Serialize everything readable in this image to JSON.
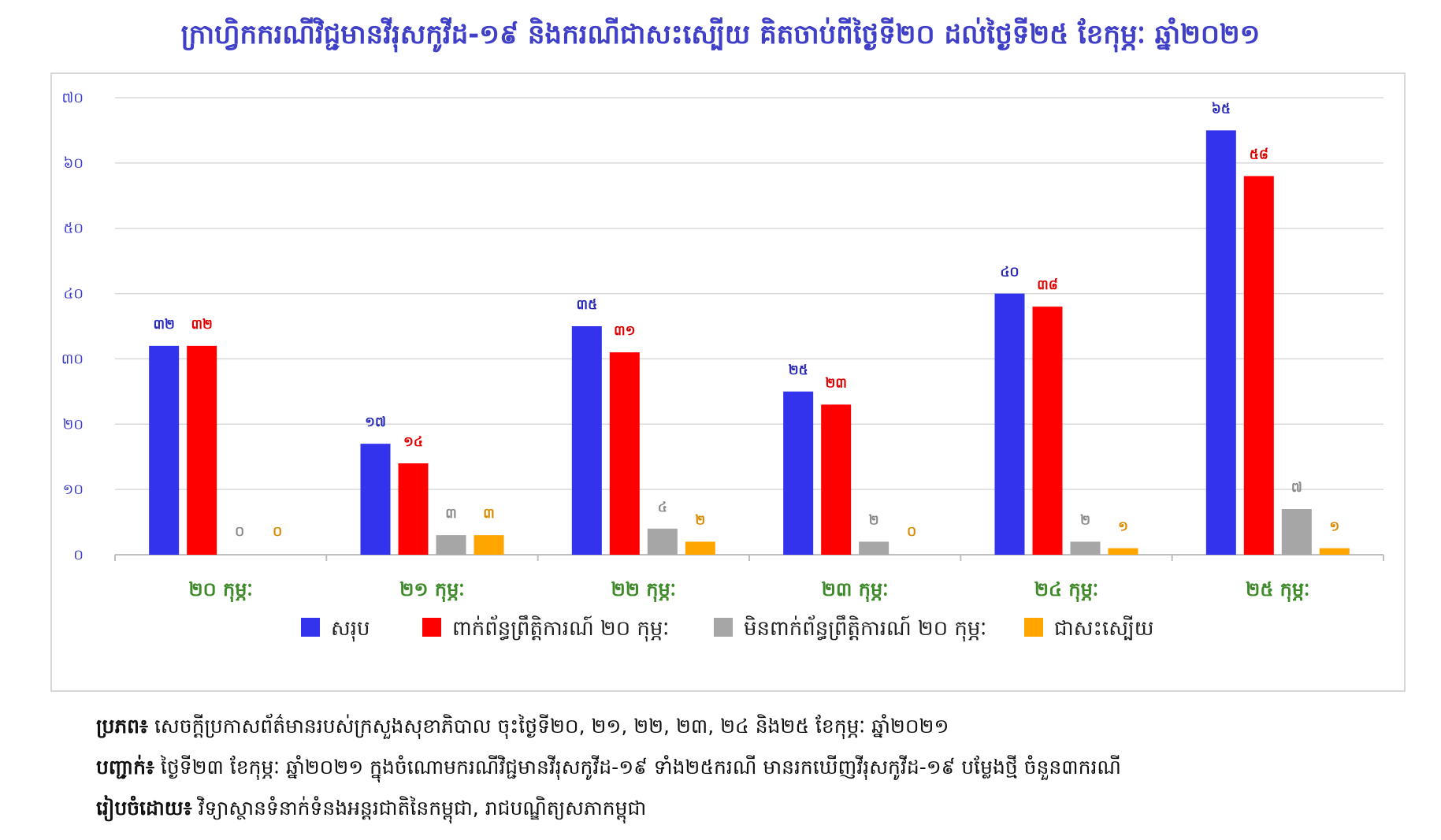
{
  "title": "ក្រាហ្វិកករណីវិជ្ជមានវីរុសកូវីដ-១៩ និងករណីជាសះស្បើយ គិតចាប់ពីថ្ងៃទី២០ ដល់ថ្ងៃទី២៥ ខែកុម្ភៈ ឆ្នាំ២០២១",
  "chart_data": {
    "type": "bar",
    "categories": [
      "២០ កុម្ភៈ",
      "២១ កុម្ភៈ",
      "២២ កុម្ភៈ",
      "២៣ កុម្ភៈ",
      "២៤ កុម្ភៈ",
      "២៥ កុម្ភៈ"
    ],
    "series": [
      {
        "name": "សរុប",
        "color": "#3333ee",
        "values": [
          32,
          17,
          35,
          25,
          40,
          65
        ],
        "labels": [
          "៣២",
          "១៧",
          "៣៥",
          "២៥",
          "៤០",
          "៦៥"
        ]
      },
      {
        "name": "ពាក់ព័ន្ធព្រឹត្តិការណ៍ ២០ កុម្ភៈ",
        "color": "#ff0000",
        "values": [
          32,
          14,
          31,
          23,
          38,
          58
        ],
        "labels": [
          "៣២",
          "១៤",
          "៣១",
          "២៣",
          "៣៨",
          "៥៨"
        ]
      },
      {
        "name": "មិនពាក់ព័ន្ធព្រឹត្តិការណ៍ ២០ កុម្ភៈ",
        "color": "#a6a6a6",
        "values": [
          0,
          3,
          4,
          2,
          2,
          7
        ],
        "labels": [
          "០",
          "៣",
          "៤",
          "២",
          "២",
          "៧"
        ]
      },
      {
        "name": "ជាសះស្បើយ",
        "color": "#ffa500",
        "values": [
          0,
          3,
          2,
          0,
          1,
          1
        ],
        "labels": [
          "០",
          "៣",
          "២",
          "០",
          "១",
          "១"
        ]
      }
    ],
    "ylim": [
      0,
      70
    ],
    "yticks": [
      0,
      10,
      20,
      30,
      40,
      50,
      60,
      70
    ],
    "ytick_labels": [
      "០",
      "១០",
      "២០",
      "៣០",
      "៤០",
      "៥០",
      "៦០",
      "៧០"
    ],
    "grid": true,
    "legend_position": "bottom",
    "label_colors": [
      "#2a2ab8",
      "#e00000",
      "#8a8a8a",
      "#d98a00"
    ],
    "category_color": "#3f8a2a"
  },
  "notes": [
    {
      "key": "ប្រភព៖",
      "text": " សេចក្តីប្រកាសព័ត៌មានរបស់ក្រសួងសុខាភិបាល ចុះថ្ងៃទី២០, ២១, ២២, ២៣, ២៤ និង២៥ ខែកុម្ភៈ ឆ្នាំ២០២១"
    },
    {
      "key": "បញ្ជាក់៖",
      "text": " ថ្ងៃទី២៣ ខែកុម្ភៈ ឆ្នាំ២០២១ ក្នុងចំណោមករណីវិជ្ជមានវីរុសកូវីដ-១៩ ទាំង២៥ករណី មានរកឃើញវីរុសកូវីដ-១៩ បម្លែងថ្មី ចំនួន៣ករណី"
    },
    {
      "key": "រៀបចំដោយ៖",
      "text": " វិទ្យាស្ថានទំនាក់ទំនងអន្តរជាតិនៃកម្ពុជា, រាជបណ្ឌិត្យសភាកម្ពុជា"
    }
  ]
}
